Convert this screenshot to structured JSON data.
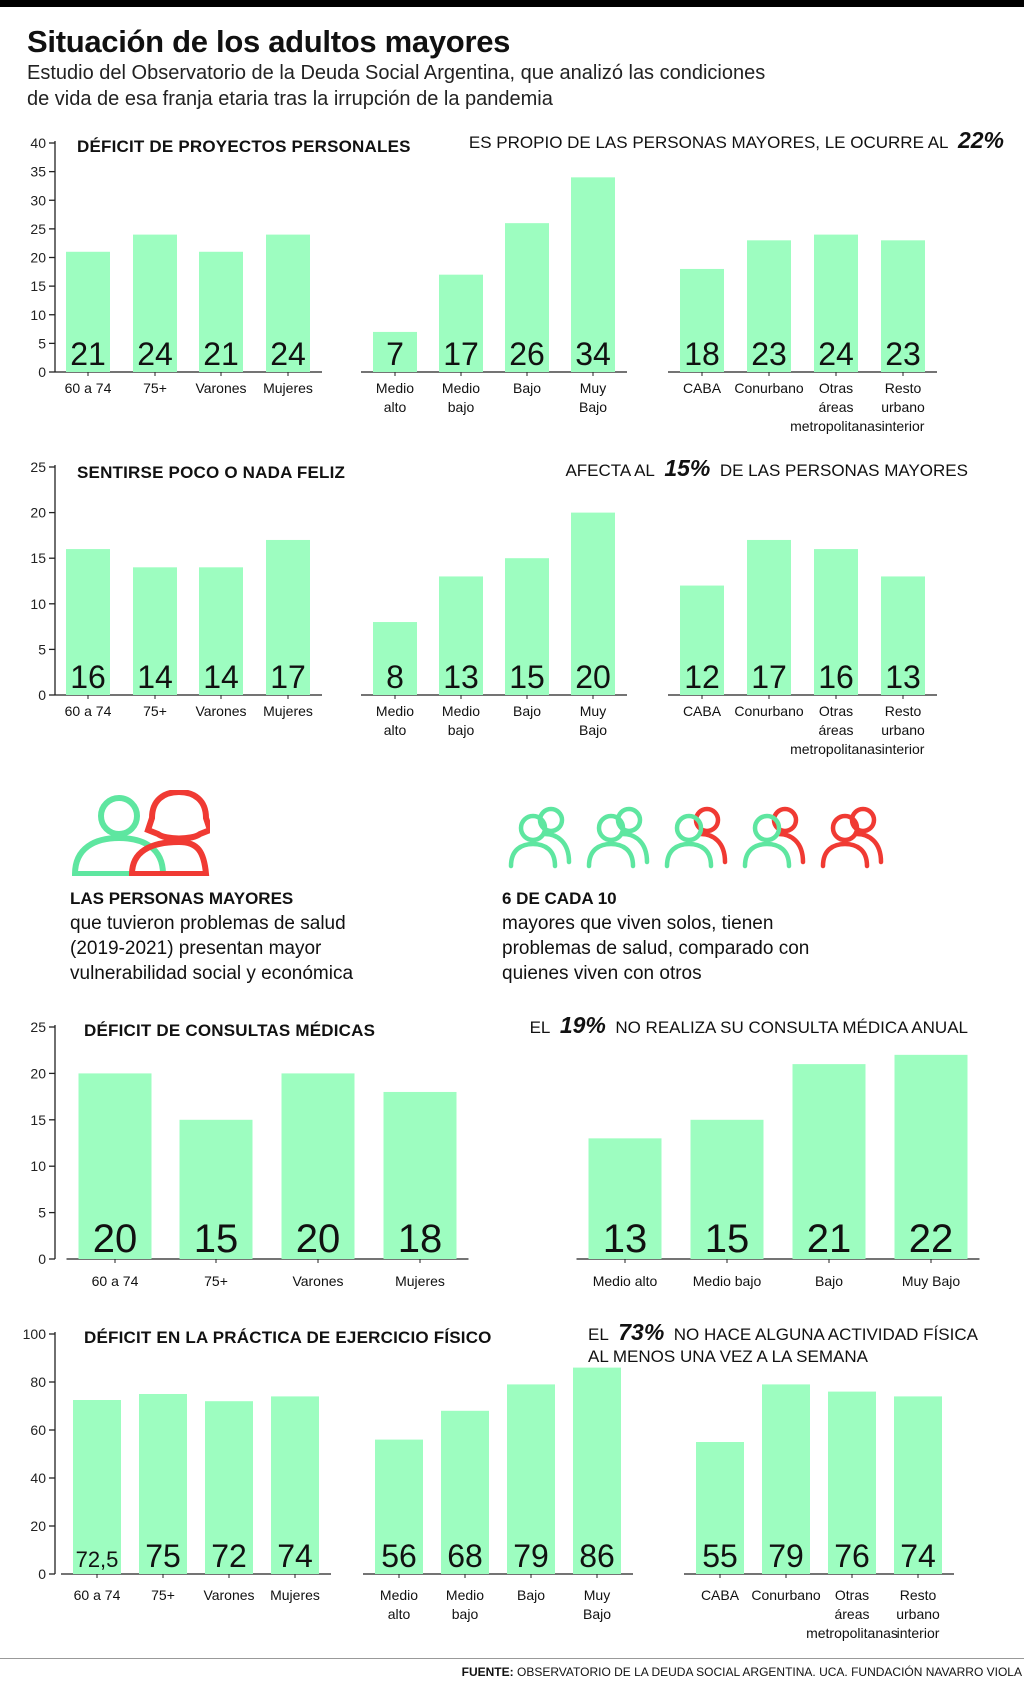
{
  "header": {
    "title": "Situación de los adultos mayores",
    "subtitle_line1": "Estudio del Observatorio de la Deuda Social Argentina, que analizó las condiciones",
    "subtitle_line2": "de vida de esa franja etaria tras la irrupción de la pandemia"
  },
  "notes": {
    "c1_text": "ES PROPIO DE LAS PERSONAS MAYORES, LE OCURRE AL",
    "c1_pct": "22%",
    "c2_pre": "AFECTA AL",
    "c2_pct": "15%",
    "c2_post": "DE LAS PERSONAS MAYORES",
    "c3_pre": "EL",
    "c3_pct": "19%",
    "c3_post": "NO REALIZA SU CONSULTA MÉDICA ANUAL",
    "c4_pre": "EL",
    "c4_pct": "73%",
    "c4_post": "NO HACE ALGUNA ACTIVIDAD FÍSICA",
    "c4_line2": "AL MENOS UNA VEZ A LA SEMANA"
  },
  "info": {
    "left_head": "LAS PERSONAS MAYORES",
    "left_l1": "que tuvieron problemas de salud",
    "left_l2": "(2019-2021) presentan mayor",
    "left_l3": "vulnerabilidad social y económica",
    "right_head": "6 DE CADA 10",
    "right_l1": "mayores que viven solos, tienen",
    "right_l2": "problemas de salud, comparado con",
    "right_l3": "quienes viven con otros",
    "people_icon": "people-icon",
    "group_icon": "group-icon",
    "icon_green": "#5ee6a0",
    "icon_red": "#f03a33"
  },
  "footer": {
    "label": "FUENTE:",
    "text": "OBSERVATORIO DE LA DEUDA SOCIAL ARGENTINA. UCA. FUNDACIÓN NAVARRO VIOLA"
  },
  "colors": {
    "bar": "#9dfdc0",
    "text": "#111111",
    "accent_red": "#f03a33",
    "accent_green": "#5ee6a0"
  },
  "chart_data": [
    {
      "type": "bar",
      "title": "DÉFICIT DE PROYECTOS PERSONALES",
      "ylim": [
        0,
        40
      ],
      "yticks": [
        0,
        5,
        10,
        15,
        20,
        25,
        30,
        35,
        40
      ],
      "categories": [
        "60 a 74",
        "75+",
        "Varones",
        "Mujeres",
        "Medio alto",
        "Medio bajo",
        "Bajo",
        "Muy Bajo",
        "CABA",
        "Conurbano",
        "Otras áreas metropolitanas",
        "Resto urbano interior"
      ],
      "category_lines": [
        [
          "60 a 74"
        ],
        [
          "75+"
        ],
        [
          "Varones"
        ],
        [
          "Mujeres"
        ],
        [
          "Medio",
          "alto"
        ],
        [
          "Medio",
          "bajo"
        ],
        [
          "Bajo"
        ],
        [
          "Muy",
          "Bajo"
        ],
        [
          "CABA"
        ],
        [
          "Conurbano"
        ],
        [
          "Otras",
          "áreas",
          "metropolitanas"
        ],
        [
          "Resto",
          "urbano",
          "interior"
        ]
      ],
      "groups": [
        [
          0,
          1,
          2,
          3
        ],
        [
          4,
          5,
          6,
          7
        ],
        [
          8,
          9,
          10,
          11
        ]
      ],
      "values": [
        21,
        24,
        21,
        24,
        7,
        17,
        26,
        34,
        18,
        23,
        24,
        23
      ],
      "value_labels": [
        "21",
        "24",
        "21",
        "24",
        "7",
        "17",
        "26",
        "34",
        "18",
        "23",
        "24",
        "23"
      ]
    },
    {
      "type": "bar",
      "title": "SENTIRSE POCO O NADA FELIZ",
      "ylim": [
        0,
        25
      ],
      "yticks": [
        0,
        5,
        10,
        15,
        20,
        25
      ],
      "categories": [
        "60 a 74",
        "75+",
        "Varones",
        "Mujeres",
        "Medio alto",
        "Medio bajo",
        "Bajo",
        "Muy Bajo",
        "CABA",
        "Conurbano",
        "Otras áreas metropolitanas",
        "Resto urbano interior"
      ],
      "category_lines": [
        [
          "60 a 74"
        ],
        [
          "75+"
        ],
        [
          "Varones"
        ],
        [
          "Mujeres"
        ],
        [
          "Medio",
          "alto"
        ],
        [
          "Medio",
          "bajo"
        ],
        [
          "Bajo"
        ],
        [
          "Muy",
          "Bajo"
        ],
        [
          "CABA"
        ],
        [
          "Conurbano"
        ],
        [
          "Otras",
          "áreas",
          "metropolitanas"
        ],
        [
          "Resto",
          "urbano",
          "interior"
        ]
      ],
      "groups": [
        [
          0,
          1,
          2,
          3
        ],
        [
          4,
          5,
          6,
          7
        ],
        [
          8,
          9,
          10,
          11
        ]
      ],
      "values": [
        16,
        14,
        14,
        17,
        8,
        13,
        15,
        20,
        12,
        17,
        16,
        13
      ],
      "value_labels": [
        "16",
        "14",
        "14",
        "17",
        "8",
        "13",
        "15",
        "20",
        "12",
        "17",
        "16",
        "13"
      ]
    },
    {
      "type": "bar",
      "title": "DÉFICIT DE CONSULTAS MÉDICAS",
      "ylim": [
        0,
        25
      ],
      "yticks": [
        0,
        5,
        10,
        15,
        20,
        25
      ],
      "categories": [
        "60 a 74",
        "75+",
        "Varones",
        "Mujeres",
        "Medio alto",
        "Medio bajo",
        "Bajo",
        "Muy Bajo"
      ],
      "category_lines": [
        [
          "60 a 74"
        ],
        [
          "75+"
        ],
        [
          "Varones"
        ],
        [
          "Mujeres"
        ],
        [
          "Medio alto"
        ],
        [
          "Medio bajo"
        ],
        [
          "Bajo"
        ],
        [
          "Muy Bajo"
        ]
      ],
      "groups": [
        [
          0,
          1,
          2,
          3
        ],
        [
          4,
          5,
          6,
          7
        ]
      ],
      "values": [
        20,
        15,
        20,
        18,
        13,
        15,
        21,
        22
      ],
      "value_labels": [
        "20",
        "15",
        "20",
        "18",
        "13",
        "15",
        "21",
        "22"
      ]
    },
    {
      "type": "bar",
      "title": "DÉFICIT EN LA PRÁCTICA DE EJERCICIO FÍSICO",
      "ylim": [
        0,
        100
      ],
      "yticks": [
        0,
        20,
        40,
        60,
        80,
        100
      ],
      "categories": [
        "60 a 74",
        "75+",
        "Varones",
        "Mujeres",
        "Medio alto",
        "Medio bajo",
        "Bajo",
        "Muy Bajo",
        "CABA",
        "Conurbano",
        "Otras áreas metropolitanas",
        "Resto urbano interior"
      ],
      "category_lines": [
        [
          "60 a 74"
        ],
        [
          "75+"
        ],
        [
          "Varones"
        ],
        [
          "Mujeres"
        ],
        [
          "Medio",
          "alto"
        ],
        [
          "Medio",
          "bajo"
        ],
        [
          "Bajo"
        ],
        [
          "Muy",
          "Bajo"
        ],
        [
          "CABA"
        ],
        [
          "Conurbano"
        ],
        [
          "Otras",
          "áreas",
          "metropolitanas"
        ],
        [
          "Resto",
          "urbano",
          "interior"
        ]
      ],
      "groups": [
        [
          0,
          1,
          2,
          3
        ],
        [
          4,
          5,
          6,
          7
        ],
        [
          8,
          9,
          10,
          11
        ]
      ],
      "values": [
        72.5,
        75,
        72,
        74,
        56,
        68,
        79,
        86,
        55,
        79,
        76,
        74
      ],
      "value_labels": [
        "72,5",
        "75",
        "72",
        "74",
        "56",
        "68",
        "79",
        "86",
        "55",
        "79",
        "76",
        "74"
      ]
    }
  ]
}
